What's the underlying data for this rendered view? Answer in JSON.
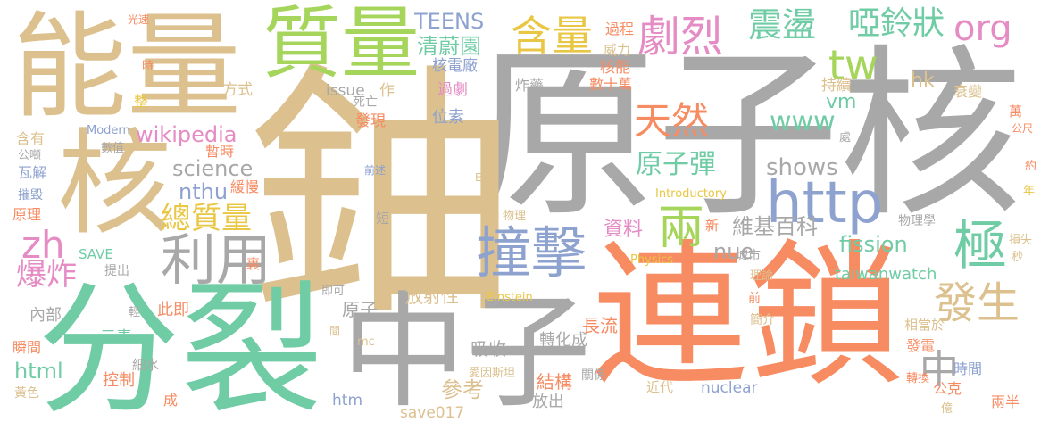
{
  "palette": {
    "gray": "#a8a8a8",
    "tan": "#dcc18f",
    "green": "#70cca4",
    "orange": "#f78b62",
    "olive": "#a5d55b",
    "blue": "#8ea2cf",
    "pink": "#e58cc4",
    "yellow": "#e9c745"
  },
  "words": [
    {
      "text": "原子核",
      "color": "gray"
    },
    {
      "text": "鈾",
      "color": "tan"
    },
    {
      "text": "連鎖",
      "color": "orange"
    },
    {
      "text": "分裂",
      "color": "green"
    },
    {
      "text": "能量",
      "color": "tan"
    },
    {
      "text": "中子",
      "color": "gray"
    },
    {
      "text": "核",
      "color": "tan"
    },
    {
      "text": "質量",
      "color": "olive"
    },
    {
      "text": "撞擊",
      "color": "blue"
    },
    {
      "text": "http",
      "color": "blue"
    },
    {
      "text": "天然",
      "color": "orange"
    },
    {
      "text": "含量",
      "color": "yellow"
    },
    {
      "text": "劇烈",
      "color": "pink"
    },
    {
      "text": "震盪",
      "color": "green"
    },
    {
      "text": "啞鈴狀",
      "color": "green"
    },
    {
      "text": "org",
      "color": "pink"
    },
    {
      "text": "利用",
      "color": "gray"
    },
    {
      "text": "發生",
      "color": "tan"
    },
    {
      "text": "兩",
      "color": "olive"
    },
    {
      "text": "極",
      "color": "green"
    },
    {
      "text": "中",
      "color": "gray"
    },
    {
      "text": "原子彈",
      "color": "green"
    },
    {
      "text": "總質量",
      "color": "yellow"
    },
    {
      "text": "zh",
      "color": "pink"
    },
    {
      "text": "爆炸",
      "color": "pink"
    },
    {
      "text": "tw",
      "color": "olive"
    },
    {
      "text": "TEENS",
      "color": "blue"
    },
    {
      "text": "清蔚園",
      "color": "green"
    },
    {
      "text": "wikipedia",
      "color": "pink"
    },
    {
      "text": "www",
      "color": "green"
    },
    {
      "text": "science",
      "color": "gray"
    },
    {
      "text": "nthu",
      "color": "blue"
    },
    {
      "text": "shows",
      "color": "gray"
    },
    {
      "text": "維基百科",
      "color": "gray"
    },
    {
      "text": "資料",
      "color": "pink"
    },
    {
      "text": "nue",
      "color": "gray"
    },
    {
      "text": "fission",
      "color": "green"
    },
    {
      "text": "vm",
      "color": "green"
    },
    {
      "text": "hk",
      "color": "tan"
    },
    {
      "text": "taiwanwatch",
      "color": "green"
    },
    {
      "text": "html",
      "color": "green"
    },
    {
      "text": "參考",
      "color": "tan"
    },
    {
      "text": "結構",
      "color": "orange"
    },
    {
      "text": "放射性",
      "color": "tan"
    },
    {
      "text": "吸收",
      "color": "gray"
    },
    {
      "text": "原子",
      "color": "gray"
    },
    {
      "text": "長流",
      "color": "orange"
    },
    {
      "text": "轉化成",
      "color": "gray"
    },
    {
      "text": "放出",
      "color": "gray"
    },
    {
      "text": "控制",
      "color": "orange"
    },
    {
      "text": "元素",
      "color": "green"
    },
    {
      "text": "此即",
      "color": "orange"
    },
    {
      "text": "內部",
      "color": "gray"
    },
    {
      "text": "核電廠",
      "color": "blue"
    },
    {
      "text": "核能",
      "color": "orange"
    },
    {
      "text": "過程",
      "color": "orange"
    },
    {
      "text": "威力",
      "color": "tan"
    },
    {
      "text": "持續",
      "color": "tan"
    },
    {
      "text": "衰變",
      "color": "tan"
    },
    {
      "text": "數十萬",
      "color": "orange"
    },
    {
      "text": "炸藥",
      "color": "gray"
    },
    {
      "text": "issue",
      "color": "gray"
    },
    {
      "text": "作",
      "color": "tan"
    },
    {
      "text": "過劇",
      "color": "pink"
    },
    {
      "text": "位素",
      "color": "blue"
    },
    {
      "text": "發現",
      "color": "orange"
    },
    {
      "text": "死亡",
      "color": "gray"
    },
    {
      "text": "方式",
      "color": "tan"
    },
    {
      "text": "暫時",
      "color": "orange"
    },
    {
      "text": "緩慢",
      "color": "orange"
    },
    {
      "text": "Modern",
      "color": "blue"
    },
    {
      "text": "數值",
      "color": "gray"
    },
    {
      "text": "含有",
      "color": "tan"
    },
    {
      "text": "公噸",
      "color": "gray"
    },
    {
      "text": "瓦解",
      "color": "blue"
    },
    {
      "text": "摧毀",
      "color": "blue"
    },
    {
      "text": "原理",
      "color": "orange"
    },
    {
      "text": "SAVE",
      "color": "green"
    },
    {
      "text": "提出",
      "color": "gray"
    },
    {
      "text": "瞬間",
      "color": "orange"
    },
    {
      "text": "黃色",
      "color": "tan"
    },
    {
      "text": "細水",
      "color": "gray"
    },
    {
      "text": "成",
      "color": "orange"
    },
    {
      "text": "htm",
      "color": "blue"
    },
    {
      "text": "save017",
      "color": "tan"
    },
    {
      "text": "nuclear",
      "color": "blue"
    },
    {
      "text": "近代",
      "color": "tan"
    },
    {
      "text": "關係",
      "color": "gray"
    },
    {
      "text": "愛因斯坦",
      "color": "tan"
    },
    {
      "text": "mc",
      "color": "tan"
    },
    {
      "text": "Einstein",
      "color": "yellow"
    },
    {
      "text": "Physics",
      "color": "yellow"
    },
    {
      "text": "Introductory",
      "color": "yellow"
    },
    {
      "text": "物理",
      "color": "tan"
    },
    {
      "text": "物理學",
      "color": "gray"
    },
    {
      "text": "城市",
      "color": "gray"
    },
    {
      "text": "理論",
      "color": "tan"
    },
    {
      "text": "前",
      "color": "orange"
    },
    {
      "text": "簡介",
      "color": "tan"
    },
    {
      "text": "相當於",
      "color": "tan"
    },
    {
      "text": "發電",
      "color": "orange"
    },
    {
      "text": "時間",
      "color": "blue"
    },
    {
      "text": "轉換",
      "color": "orange"
    },
    {
      "text": "公克",
      "color": "orange"
    },
    {
      "text": "兩半",
      "color": "orange"
    },
    {
      "text": "億",
      "color": "tan"
    },
    {
      "text": "損失",
      "color": "tan"
    },
    {
      "text": "秒",
      "color": "tan"
    },
    {
      "text": "年",
      "color": "yellow"
    },
    {
      "text": "約",
      "color": "orange"
    },
    {
      "text": "公尺",
      "color": "orange"
    },
    {
      "text": "萬",
      "color": "orange"
    },
    {
      "text": "處",
      "color": "gray"
    },
    {
      "text": "新",
      "color": "orange"
    },
    {
      "text": "短",
      "color": "gray"
    },
    {
      "text": "裏",
      "color": "orange"
    },
    {
      "text": "即可",
      "color": "gray"
    },
    {
      "text": "輕",
      "color": "gray"
    },
    {
      "text": "間",
      "color": "tan"
    },
    {
      "text": "前述",
      "color": "blue"
    },
    {
      "text": "E",
      "color": "tan"
    },
    {
      "text": "整",
      "color": "yellow"
    },
    {
      "text": "時",
      "color": "orange"
    },
    {
      "text": "光速",
      "color": "orange"
    }
  ]
}
